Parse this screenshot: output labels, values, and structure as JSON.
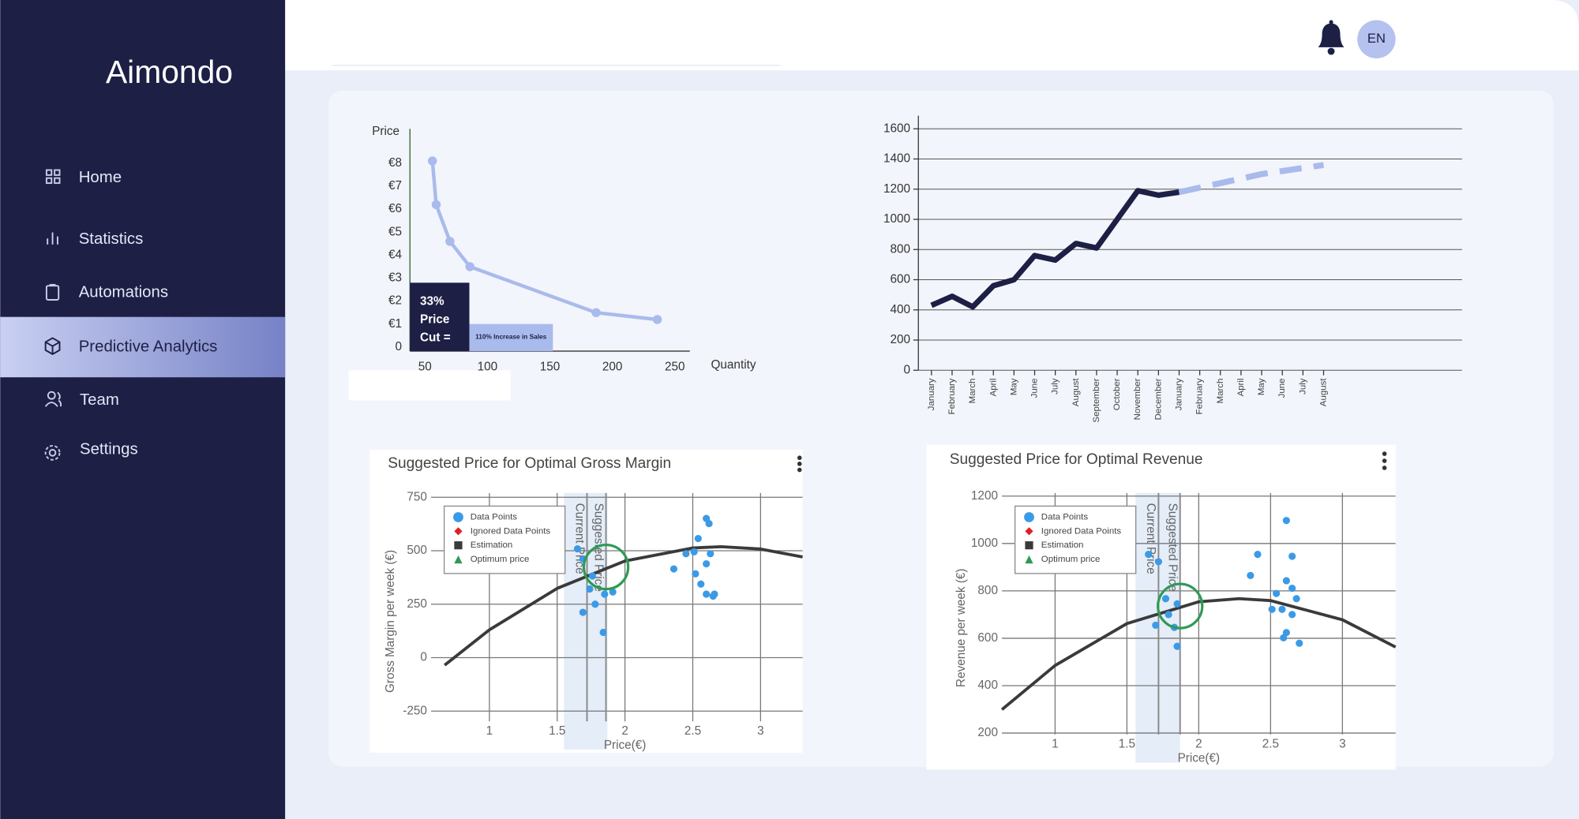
{
  "sidebar": {
    "brand": "Aimondo",
    "nav": [
      "Home",
      "Statistics",
      "Automations",
      "Predictive Analytics",
      "Team",
      "Settings"
    ]
  },
  "header": {
    "language": "EN"
  },
  "demand_chart": {
    "type": "line",
    "y_label": "Price",
    "x_label": "Quantity",
    "x": [
      56,
      59,
      70,
      86,
      187,
      236
    ],
    "values": [
      8.1,
      6.2,
      4.6,
      3.5,
      1.5,
      1.2
    ],
    "color": "#a9bbec",
    "xlim": [
      38,
      262
    ],
    "ylim": [
      0,
      9.5
    ],
    "xticks": [
      50,
      100,
      150,
      200,
      250
    ],
    "yticks": [
      0,
      {
        "value": 1,
        "label": "€1"
      },
      {
        "value": 2,
        "label": "€2"
      },
      {
        "value": 3,
        "label": "€3"
      },
      {
        "value": 4,
        "label": "€4"
      },
      {
        "value": 5,
        "label": "€5"
      },
      {
        "value": 6,
        "label": "€6"
      },
      {
        "value": 7,
        "label": "€7"
      },
      {
        "value": 8,
        "label": "€8"
      }
    ],
    "annotation": {
      "lines": [
        "33%",
        "Price",
        "Cut ="
      ],
      "note": "110% Increase in Sales"
    }
  },
  "sales_chart": {
    "type": "line",
    "grid": true,
    "ylim": [
      0,
      1600
    ],
    "yticks": [
      0,
      200,
      400,
      600,
      800,
      1000,
      1200,
      1400,
      1600
    ],
    "categories": [
      "January",
      "February",
      "March",
      "April",
      "May",
      "June",
      "July",
      "August",
      "September",
      "October",
      "November",
      "December",
      "January",
      "February",
      "March",
      "April",
      "May",
      "June",
      "July",
      "August"
    ],
    "series": [
      {
        "color": "#1d1f45",
        "dashed": false,
        "values": [
          430,
          490,
          420,
          560,
          600,
          760,
          730,
          840,
          810,
          1000,
          1190,
          1160,
          1180,
          null,
          null,
          null,
          null,
          null,
          null,
          null
        ]
      },
      {
        "color": "#a9bbec",
        "dashed": true,
        "values": [
          null,
          null,
          null,
          null,
          null,
          null,
          null,
          null,
          null,
          null,
          null,
          null,
          1180,
          1210,
          1240,
          1270,
          1300,
          1320,
          1340,
          1360
        ]
      }
    ]
  },
  "margin_chart": {
    "type": "scatter",
    "title": "Suggested Price for Optimal Gross Margin",
    "y_label": "Gross Margin per week (€)",
    "x_label": "Price(€)",
    "xlim": [
      0.57,
      3.31
    ],
    "ylim": [
      -430,
      770
    ],
    "xticks": [
      1,
      1.5,
      2,
      2.5,
      3
    ],
    "yticks": [
      -250,
      0,
      250,
      500,
      750
    ],
    "legend": [
      "Data Points",
      "Ignored Data Points",
      "Estimation",
      "Optimum price"
    ],
    "shaded_range": [
      1.55,
      1.87
    ],
    "reference_lines": [
      {
        "label": "Current Price",
        "x": 1.72
      },
      {
        "label": "Suggested Price",
        "x": 1.86
      }
    ],
    "points": {
      "color": "#3b9ae6",
      "x": [
        1.65,
        1.69,
        1.76,
        1.74,
        1.78,
        1.69,
        1.84,
        1.85,
        1.91,
        2.36,
        2.45,
        2.51,
        2.54,
        2.6,
        2.62,
        2.52,
        2.56,
        2.6,
        2.65,
        2.6,
        2.63,
        2.66
      ],
      "y": [
        509,
        462,
        382,
        321,
        250,
        212,
        118,
        297,
        307,
        415,
        486,
        495,
        557,
        651,
        627,
        392,
        344,
        297,
        288,
        439,
        486,
        297
      ]
    },
    "estimation": {
      "color": "#3a3a3a",
      "x": [
        0.67,
        1,
        1.5,
        2,
        2.5,
        2.71,
        3,
        3.31
      ],
      "y": [
        -35,
        130,
        324,
        452,
        513,
        519,
        508,
        471
      ]
    },
    "optimum": {
      "color": "#2e9a55",
      "x": 1.86,
      "y": 424
    }
  },
  "revenue_chart": {
    "type": "scatter",
    "title": "Suggested Price for Optimal Revenue",
    "y_label": "Revenue per week (€)",
    "x_label": "Price(€)",
    "xlim": [
      0.63,
      3.37
    ],
    "ylim": [
      75,
      1213
    ],
    "xticks": [
      1,
      1.5,
      2,
      2.5,
      3
    ],
    "yticks": [
      200,
      400,
      600,
      800,
      1000,
      1200
    ],
    "legend": [
      "Data Points",
      "Ignored Data Points",
      "Estimation",
      "Optimum price"
    ],
    "shaded_range": [
      1.56,
      1.87
    ],
    "reference_lines": [
      {
        "label": "Current Price",
        "x": 1.72
      },
      {
        "label": "Suggested Price",
        "x": 1.87
      }
    ],
    "points": {
      "color": "#3b9ae6",
      "x": [
        1.65,
        1.72,
        1.77,
        1.79,
        1.7,
        1.85,
        1.85,
        1.83,
        2.41,
        2.36,
        2.61,
        2.65,
        2.61,
        2.54,
        2.58,
        2.65,
        2.68,
        2.61,
        2.59,
        2.7,
        2.51,
        2.65
      ],
      "y": [
        954,
        923,
        767,
        700,
        655,
        745,
        566,
        646,
        954,
        865,
        1097,
        946,
        843,
        789,
        722,
        700,
        767,
        624,
        602,
        579,
        722,
        811
      ]
    },
    "estimation": {
      "color": "#3a3a3a",
      "x": [
        0.63,
        1,
        1.5,
        2,
        2.28,
        2.5,
        3,
        3.37
      ],
      "y": [
        299,
        485,
        662,
        754,
        767,
        759,
        678,
        563
      ]
    },
    "optimum": {
      "color": "#2e9a55",
      "x": 1.87,
      "y": 736
    }
  }
}
